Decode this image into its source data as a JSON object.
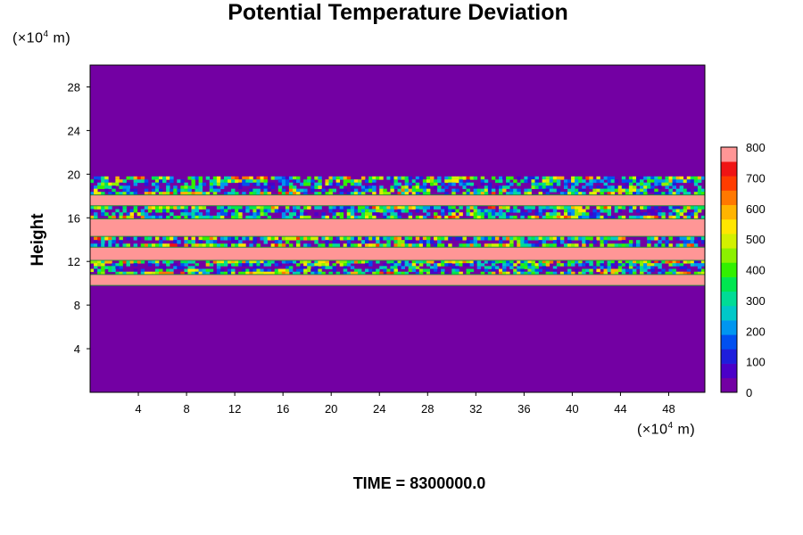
{
  "chart_data": {
    "type": "heatmap",
    "title": "Potential Temperature Deviation",
    "ylabel": "Height",
    "xunit": "m",
    "yunit": "m",
    "unit_exponent": "4",
    "unit_prefix": "×10",
    "xlim": [
      0,
      51
    ],
    "ylim": [
      0,
      30
    ],
    "xticks": [
      "4",
      "8",
      "12",
      "16",
      "20",
      "24",
      "28",
      "32",
      "36",
      "40",
      "44",
      "48"
    ],
    "xtick_values": [
      4,
      8,
      12,
      16,
      20,
      24,
      28,
      32,
      36,
      40,
      44,
      48
    ],
    "yticks": [
      "4",
      "8",
      "12",
      "16",
      "20",
      "24",
      "28"
    ],
    "ytick_values": [
      4,
      8,
      12,
      16,
      20,
      24,
      28
    ],
    "colorbar": {
      "ticks": [
        "0",
        "100",
        "200",
        "300",
        "400",
        "500",
        "600",
        "700",
        "800"
      ],
      "tick_values": [
        0,
        100,
        200,
        300,
        400,
        500,
        600,
        700,
        800
      ],
      "colors": [
        "#7300a3",
        "#4b00c8",
        "#1e1edc",
        "#0050f0",
        "#0096f0",
        "#00c8c8",
        "#00dc96",
        "#00e650",
        "#32f000",
        "#8cf000",
        "#d2f000",
        "#ffe600",
        "#ffb400",
        "#ff7800",
        "#ff3c00",
        "#f01414",
        "#ff9696"
      ]
    },
    "background_value": 0,
    "saturated_bands_y": [
      [
        9.8,
        10.8
      ],
      [
        12.1,
        13.3
      ],
      [
        14.3,
        15.9
      ],
      [
        17.1,
        18.1
      ]
    ],
    "mixed_bands_y": [
      [
        10.8,
        12.1
      ],
      [
        13.3,
        14.3
      ],
      [
        15.9,
        17.1
      ],
      [
        18.1,
        19.8
      ]
    ],
    "footer": "TIME = 8300000.0"
  }
}
